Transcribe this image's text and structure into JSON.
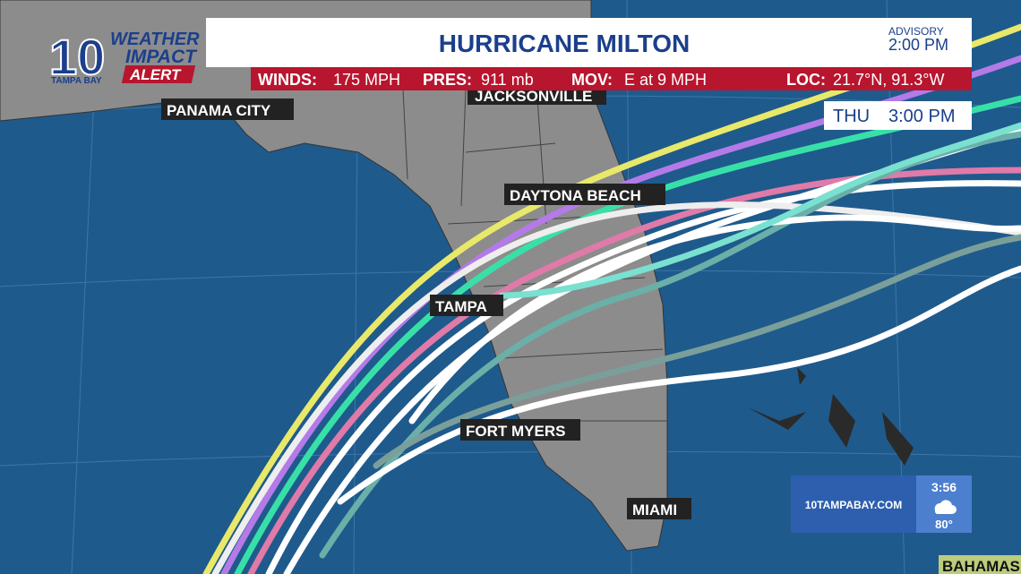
{
  "logo": {
    "number": "10",
    "line1": "WEATHER",
    "line2": "IMPACT",
    "line3": "ALERT",
    "station": "TAMPA BAY"
  },
  "header": {
    "title": "HURRICANE MILTON",
    "advisory_label": "ADVISORY",
    "advisory_time": "2:00 PM"
  },
  "stats": [
    {
      "label": "WINDS:",
      "value": "175 MPH"
    },
    {
      "label": "PRES:",
      "value": "911 mb"
    },
    {
      "label": "MOV:",
      "value": "E at 9 MPH"
    },
    {
      "label": "LOC:",
      "value": "21.7°N, 91.3°W"
    }
  ],
  "forecast_time": {
    "day": "THU",
    "time": "3:00 PM"
  },
  "cities": [
    "PANAMA CITY",
    "JACKSONVILLE",
    "DAYTONA BEACH",
    "TAMPA",
    "FORT MYERS",
    "MIAMI",
    "BAHAMAS"
  ],
  "bug": {
    "site": "10TAMPABAY.COM",
    "clock": "3:56",
    "temp": "80°"
  }
}
